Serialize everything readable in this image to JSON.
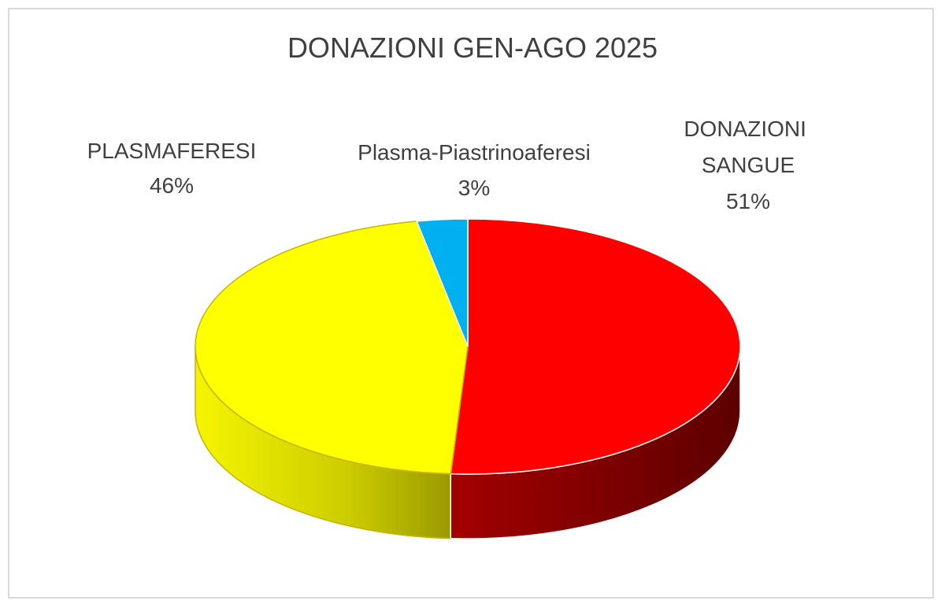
{
  "chart_data": {
    "type": "pie",
    "title": "DONAZIONI GEN-AGO 2025",
    "style": "3d-pie",
    "legend": "none",
    "slices": [
      {
        "label_lines": [
          "DONAZIONI",
          "SANGUE"
        ],
        "percent_label": "51%",
        "value": 51,
        "color": "#ff0000"
      },
      {
        "label_lines": [
          "PLASMAFERESI"
        ],
        "percent_label": "46%",
        "value": 46,
        "color": "#ffff00"
      },
      {
        "label_lines": [
          "Plasma-Piastrinoaferesi"
        ],
        "percent_label": "3%",
        "value": 3,
        "color": "#00b0f0"
      }
    ]
  }
}
